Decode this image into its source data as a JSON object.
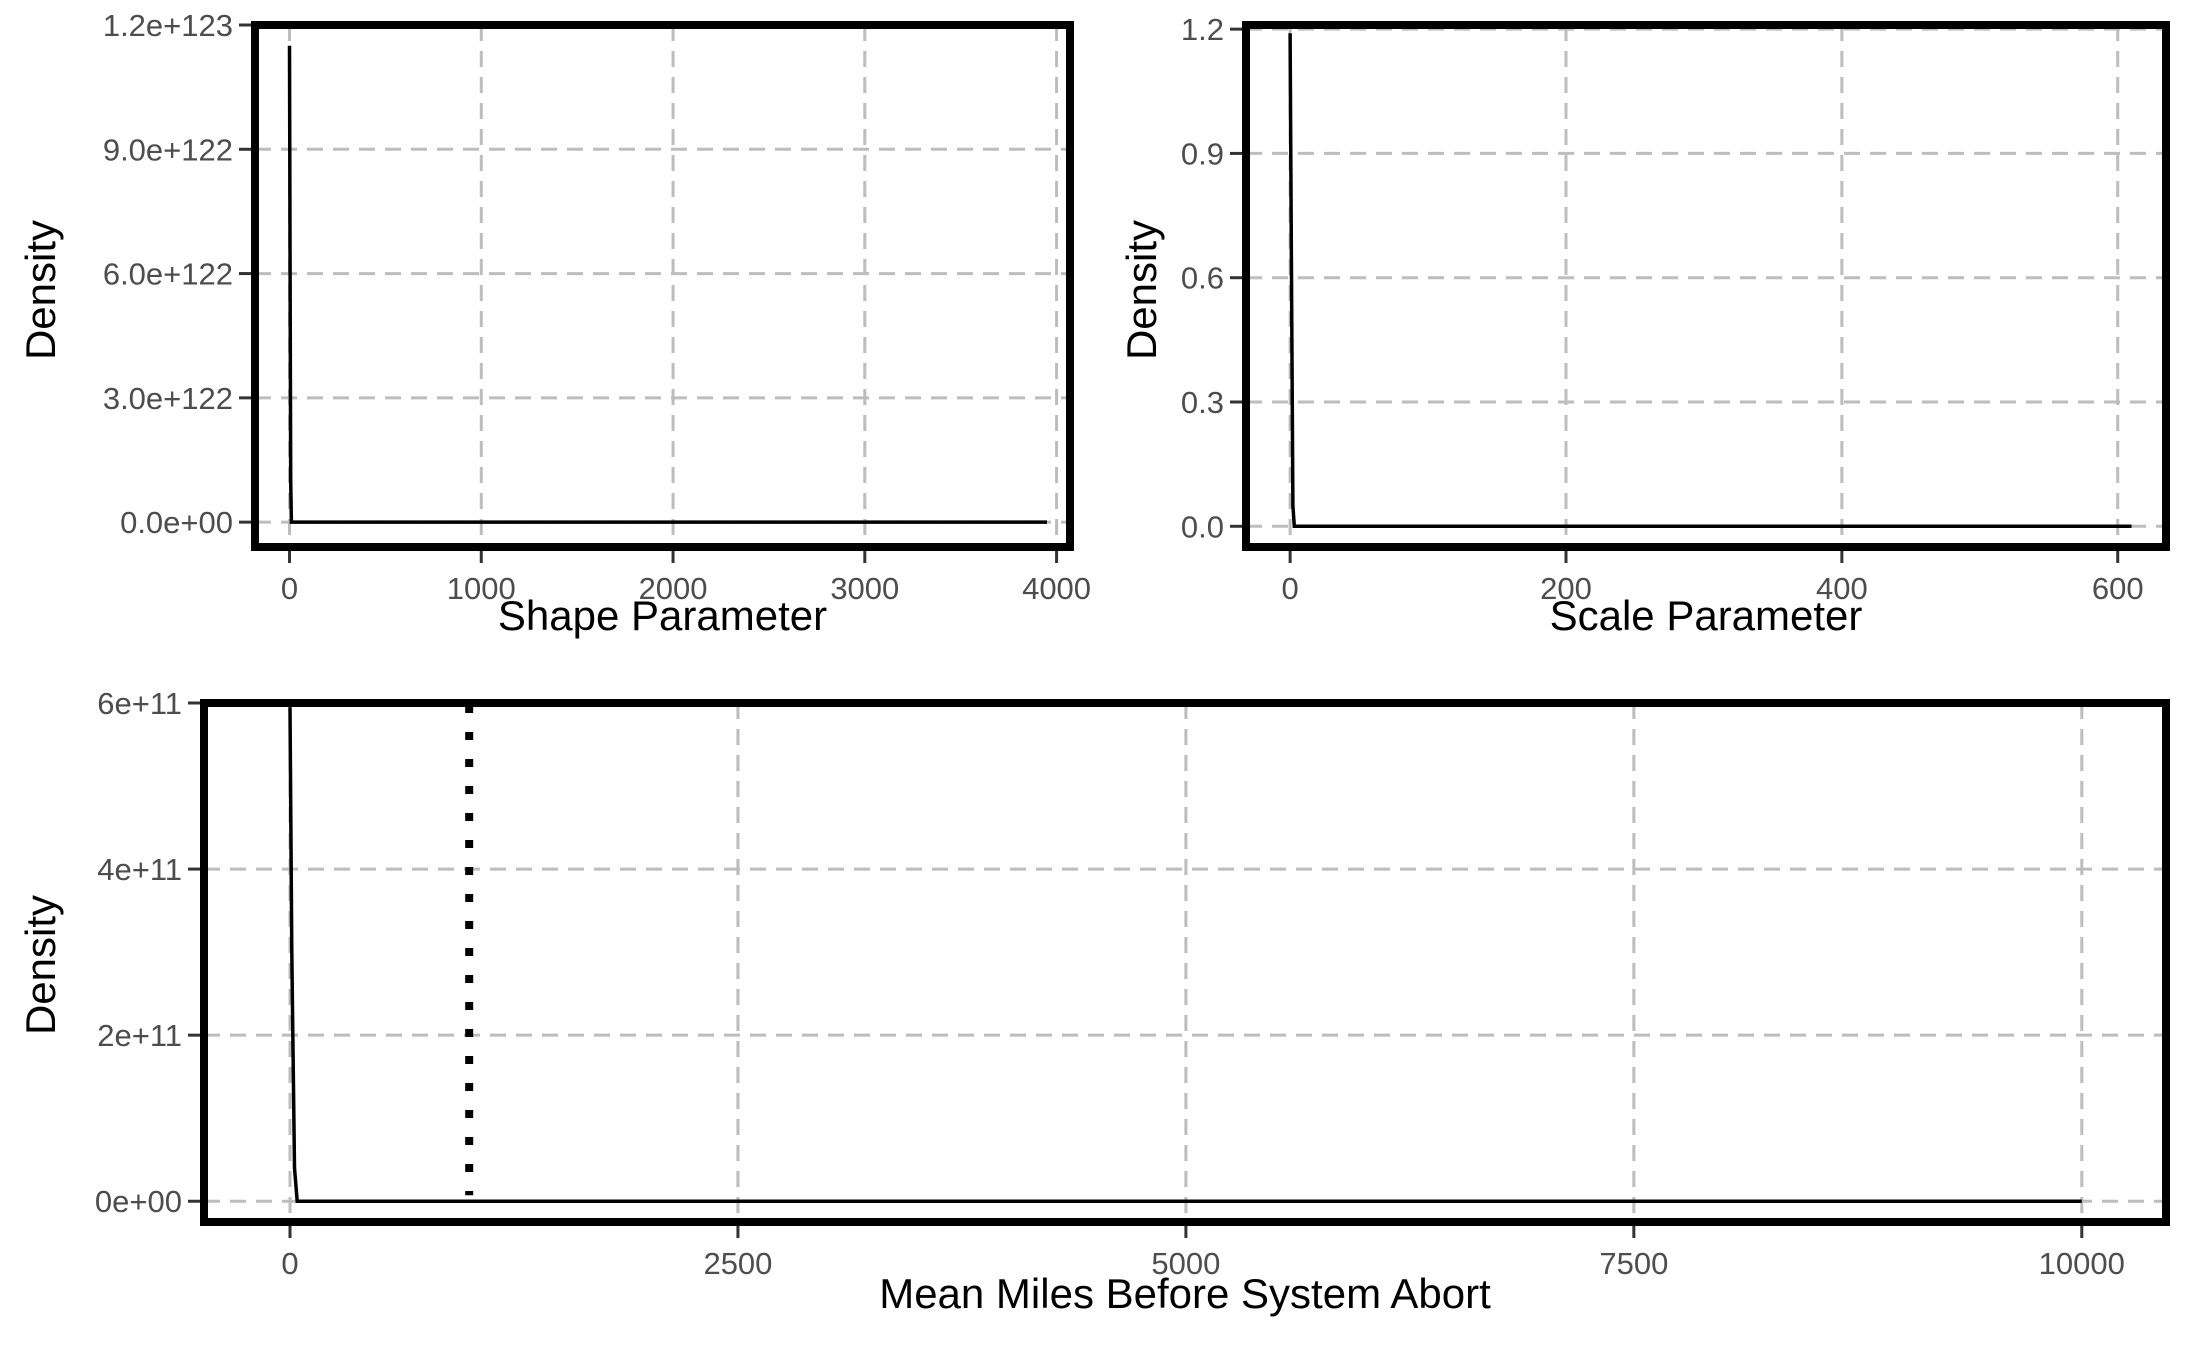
{
  "chart_data": [
    {
      "type": "line",
      "title": "",
      "xlabel": "Shape Parameter",
      "ylabel": "Density",
      "xlim": [
        -180,
        4070
      ],
      "ylim": [
        -6e+121,
        1.2e+123
      ],
      "x_ticks": [
        0,
        1000,
        2000,
        3000,
        4000
      ],
      "x_tick_labels": [
        "0",
        "1000",
        "2000",
        "3000",
        "4000"
      ],
      "y_ticks": [
        0,
        3e+122,
        6e+122,
        9e+122,
        1.2e+123
      ],
      "y_tick_labels": [
        "0.0e+00",
        "3.0e+122",
        "6.0e+122",
        "9.0e+122",
        "1.2e+123"
      ],
      "grid": true,
      "series": [
        {
          "x": [
            0,
            3,
            6,
            10,
            30,
            3950
          ],
          "y": [
            1.15e+123,
            6e+122,
            1e+122,
            0,
            0,
            0
          ]
        }
      ]
    },
    {
      "type": "line",
      "title": "",
      "xlabel": "Scale Parameter",
      "ylabel": "Density",
      "xlim": [
        -32,
        635
      ],
      "ylim": [
        -0.05,
        1.21
      ],
      "x_ticks": [
        0,
        200,
        400,
        600
      ],
      "x_tick_labels": [
        "0",
        "200",
        "400",
        "600"
      ],
      "y_ticks": [
        0,
        0.3,
        0.6,
        0.9,
        1.2
      ],
      "y_tick_labels": [
        "0.0",
        "0.3",
        "0.6",
        "0.9",
        "1.2"
      ],
      "grid": true,
      "series": [
        {
          "x": [
            0,
            1,
            2,
            3,
            610
          ],
          "y": [
            1.19,
            0.6,
            0.05,
            0,
            0
          ]
        }
      ]
    },
    {
      "type": "line",
      "title": "",
      "xlabel": "Mean Miles Before System Abort",
      "ylabel": "Density",
      "xlim": [
        -480,
        10470
      ],
      "ylim": [
        -25000000000.0,
        600000000000.0
      ],
      "x_ticks": [
        0,
        2500,
        5000,
        7500,
        10000
      ],
      "x_tick_labels": [
        "0",
        "2500",
        "5000",
        "7500",
        "10000"
      ],
      "y_ticks": [
        0,
        200000000000.0,
        400000000000.0,
        600000000000.0
      ],
      "y_tick_labels": [
        "0e+00",
        "2e+11",
        "4e+11",
        "6e+11"
      ],
      "grid": true,
      "reference_line_x": 1000,
      "series": [
        {
          "x": [
            0,
            10,
            25,
            40,
            10000
          ],
          "y": [
            595000000000.0,
            300000000000.0,
            40000000000.0,
            0,
            0
          ]
        }
      ]
    }
  ]
}
